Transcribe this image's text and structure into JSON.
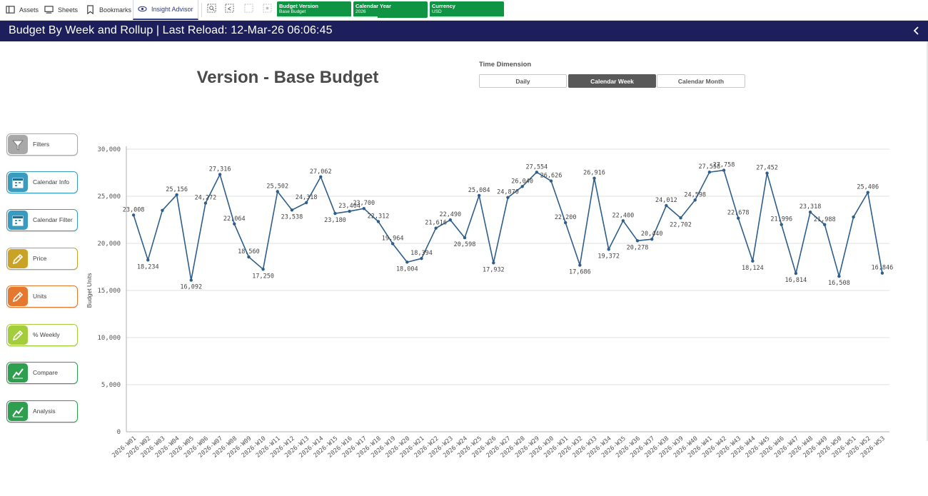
{
  "toolbar": {
    "assets": "Assets",
    "sheets": "Sheets",
    "bookmarks": "Bookmarks",
    "insight_advisor": "Insight Advisor",
    "selections": [
      {
        "title": "Budget Version",
        "value": "Base Budget"
      },
      {
        "title": "Calendar Year",
        "value": "2026"
      },
      {
        "title": "Currency",
        "value": "USD"
      }
    ]
  },
  "header": {
    "title": "Budget By Week and Rollup | Last Reload: 12-Mar-26 06:06:45"
  },
  "main": {
    "version_title": "Version - Base Budget",
    "time_dimension": {
      "label": "Time Dimension",
      "options": [
        "Daily",
        "Calendar Week",
        "Calendar Month"
      ],
      "selected": "Calendar Week"
    }
  },
  "sidebar": {
    "items": [
      {
        "label": "Filters",
        "icon": "funnel-icon",
        "color": "#a8a8a8"
      },
      {
        "label": "Calendar Info",
        "icon": "calendar-icon",
        "color": "#3a9bc0"
      },
      {
        "label": "Calendar Filter",
        "icon": "calendar-icon",
        "color": "#3a9bc0"
      },
      {
        "label": "Price",
        "icon": "pencil-icon",
        "color": "#c9a227"
      },
      {
        "label": "Units",
        "icon": "pencil-icon",
        "color": "#e6772e"
      },
      {
        "label": "% Weekly",
        "icon": "pencil-icon",
        "color": "#a4cd3c"
      },
      {
        "label": "Compare",
        "icon": "trend-icon",
        "color": "#2e9e4f"
      },
      {
        "label": "Analysis",
        "icon": "trend-icon",
        "color": "#2e9e4f"
      }
    ]
  },
  "colors": {
    "header_bg": "#1c1f5b",
    "selection_green": "#0e9442",
    "line": "#2e5e8c",
    "accent": "#2c3a8c"
  },
  "chart_data": {
    "type": "line",
    "ylabel": "Budget Units",
    "ylim": [
      0,
      30000
    ],
    "yticks": [
      "30,000",
      "25,000",
      "20,000",
      "15,000",
      "10,000",
      "5,000",
      "0"
    ],
    "grid": true,
    "categories": [
      "2026-W01",
      "2026-W02",
      "2026-W03",
      "2026-W04",
      "2026-W05",
      "2026-W06",
      "2026-W07",
      "2026-W08",
      "2026-W09",
      "2026-W10",
      "2026-W11",
      "2026-W12",
      "2026-W13",
      "2026-W14",
      "2026-W15",
      "2026-W16",
      "2026-W17",
      "2026-W18",
      "2026-W19",
      "2026-W20",
      "2026-W21",
      "2026-W22",
      "2026-W23",
      "2026-W24",
      "2026-W25",
      "2026-W26",
      "2026-W27",
      "2026-W28",
      "2026-W29",
      "2026-W30",
      "2026-W31",
      "2026-W32",
      "2026-W33",
      "2026-W34",
      "2026-W35",
      "2026-W36",
      "2026-W37",
      "2026-W38",
      "2026-W39",
      "2026-W40",
      "2026-W41",
      "2026-W42",
      "2026-W43",
      "2026-W44",
      "2026-W45",
      "2026-W46",
      "2026-W47",
      "2026-W48",
      "2026-W49",
      "2026-W50",
      "2026-W51",
      "2026-W52",
      "2026-W53"
    ],
    "values": [
      23008,
      18234,
      23500,
      25156,
      16092,
      24272,
      27316,
      22064,
      18560,
      17250,
      25502,
      23538,
      24318,
      27062,
      23180,
      23404,
      23700,
      22312,
      19964,
      18004,
      18394,
      21616,
      22490,
      20598,
      25084,
      17932,
      24870,
      26040,
      27554,
      26626,
      22200,
      17686,
      26916,
      19372,
      22400,
      20278,
      20440,
      24012,
      22702,
      24598,
      27558,
      27758,
      22678,
      18124,
      27452,
      21996,
      16814,
      23318,
      21988,
      16508,
      22800,
      25406,
      16846
    ],
    "labels": [
      "23,008",
      "18,234",
      "",
      "25,156",
      "16,092",
      "24,272",
      "27,316",
      "22,064",
      "18,560",
      "17,250",
      "25,502",
      "23,538",
      "24,318",
      "27,062",
      "23,180",
      "23,404",
      "23,700",
      "22,312",
      "19,964",
      "18,004",
      "18,394",
      "21,616",
      "22,490",
      "20,598",
      "25,084",
      "17,932",
      "24,870",
      "26,040",
      "27,554",
      "26,626",
      "22,200",
      "17,686",
      "26,916",
      "19,372",
      "22,400",
      "20,278",
      "20,440",
      "24,012",
      "22,702",
      "24,598",
      "27,558",
      "27,758",
      "22,678",
      "18,124",
      "27,452",
      "21,996",
      "16,814",
      "23,318",
      "21,988",
      "16,508",
      "",
      "25,406",
      "16,846"
    ]
  }
}
